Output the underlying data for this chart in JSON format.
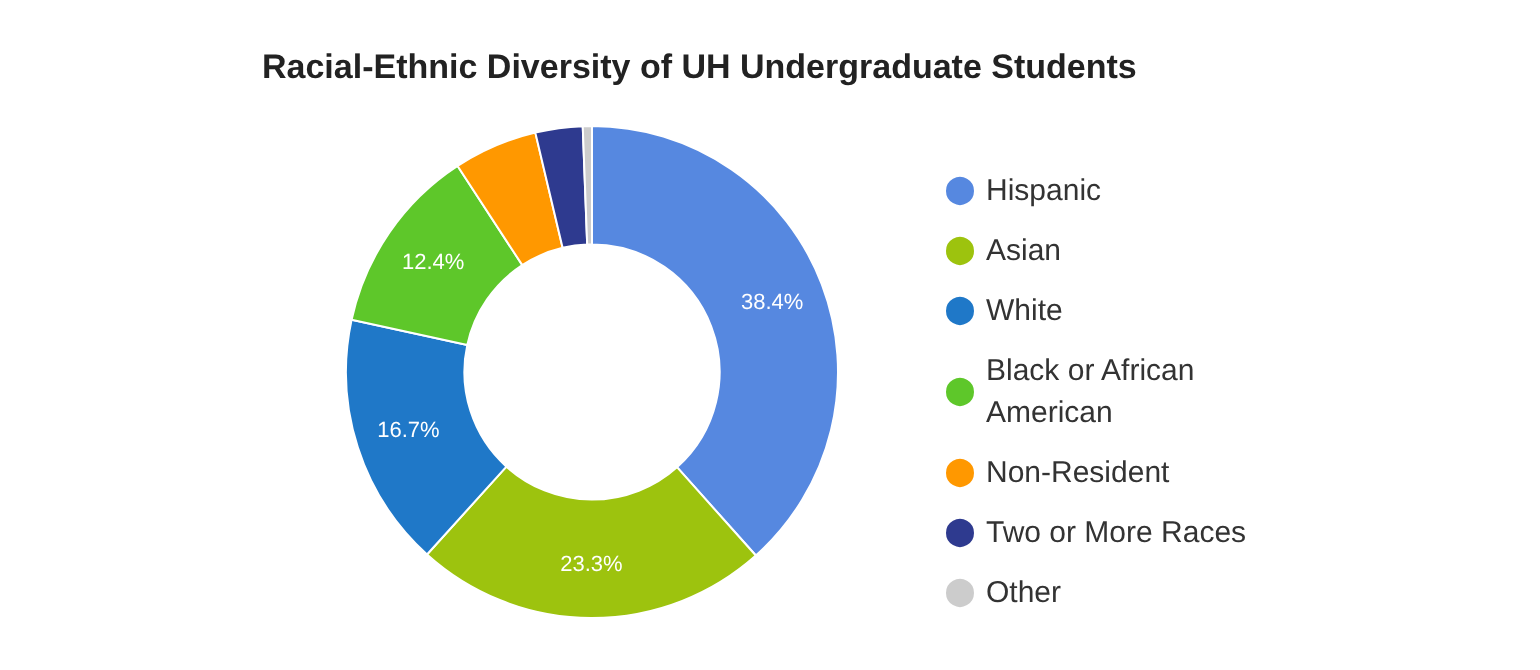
{
  "chart_data": {
    "type": "donut",
    "title": "Racial-Ethnic Diversity of UH Undergraduate Students",
    "categories": [
      "Hispanic",
      "Asian",
      "White",
      "Black or African American",
      "Non-Resident",
      "Two or More Races",
      "Other"
    ],
    "values": [
      38.4,
      23.3,
      16.7,
      12.4,
      5.5,
      3.1,
      0.6
    ],
    "colors": [
      "#5688e0",
      "#9dc30e",
      "#1f78c8",
      "#5ec72a",
      "#ff9800",
      "#2e3a8f",
      "#cccccc"
    ],
    "value_labels": [
      "38.4%",
      "23.3%",
      "16.7%",
      "12.4%",
      null,
      null,
      null
    ],
    "legend": "right"
  }
}
